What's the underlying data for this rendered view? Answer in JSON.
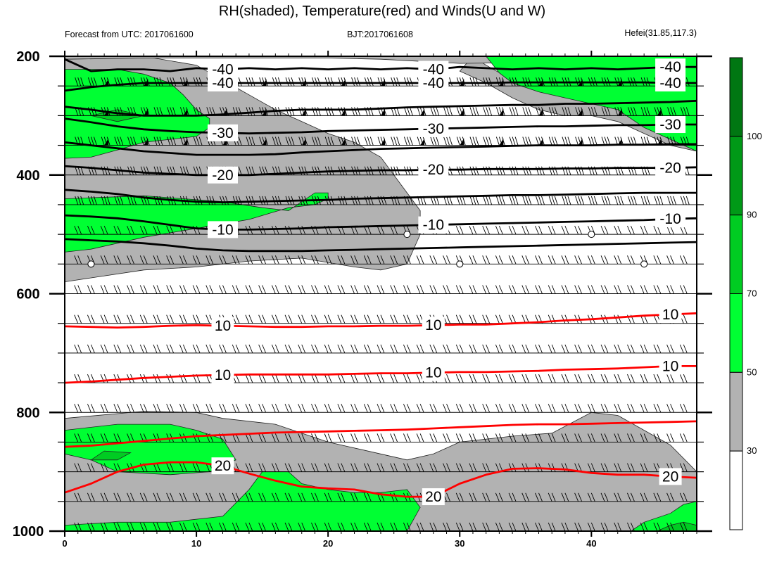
{
  "header": {
    "title": "RH(shaded), Temperature(red) and Winds(U and W)",
    "left": "Forecast from UTC: 2017061600",
    "center": "BJT:2017061608",
    "right": "Hefei(31.85,117.3)"
  },
  "colors": {
    "rh_30_50": "#b2b2b2",
    "rh_50_70": "#00ff33",
    "rh_70_90": "#00cc22",
    "rh_90_100": "#009917",
    "rh_100": "#007712",
    "temp_warm": "#ff0000",
    "temp_cold": "#000000",
    "wind": "#000000"
  },
  "chart_data": {
    "type": "contour",
    "x": {
      "min": 0,
      "max": 48,
      "ticks": [
        0,
        10,
        20,
        30,
        40
      ]
    },
    "y": {
      "label": "",
      "scale": "linear",
      "reversed": true,
      "min": 200,
      "max": 1000,
      "ticks": [
        200,
        400,
        600,
        800,
        1000
      ]
    },
    "pressure_levels": [
      200,
      250,
      300,
      350,
      400,
      450,
      500,
      550,
      600,
      650,
      700,
      750,
      800,
      850,
      900,
      950,
      1000
    ],
    "colorbar": {
      "labels": [
        "30",
        "50",
        "70",
        "90",
        "100"
      ],
      "levels": [
        30,
        50,
        70,
        90,
        100
      ]
    },
    "temperature_contours": [
      {
        "value": -40,
        "label": "-40",
        "color": "black",
        "p": [
          205,
          225,
          222,
          222,
          225,
          220,
          222,
          220,
          222,
          220,
          222,
          220,
          222,
          220,
          222,
          218,
          220,
          222,
          220,
          222,
          220,
          222,
          220,
          218,
          218
        ]
      },
      {
        "value": -40,
        "label": "-40",
        "color": "black",
        "p": [
          258,
          252,
          248,
          245,
          245,
          245,
          245,
          245,
          245,
          245,
          245,
          245,
          245,
          245,
          245,
          245,
          245,
          244,
          244,
          244,
          244,
          244,
          244,
          245,
          245
        ]
      },
      {
        "value": -35,
        "label": "",
        "color": "black",
        "p": [
          285,
          290,
          296,
          300,
          300,
          300,
          298,
          295,
          292,
          290,
          290,
          290,
          288,
          286,
          285,
          284,
          283,
          282,
          282,
          280,
          280,
          279,
          278,
          277,
          275
        ]
      },
      {
        "value": -30,
        "label": "-30",
        "color": "black",
        "p": [
          305,
          311,
          318,
          323,
          326,
          328,
          329,
          330,
          329,
          328,
          326,
          325,
          324,
          323,
          322,
          321,
          320,
          319,
          318,
          318,
          317,
          316,
          316,
          315,
          315
        ]
      },
      {
        "value": -25,
        "label": "",
        "color": "black",
        "p": [
          345,
          350,
          355,
          360,
          363,
          366,
          366,
          366,
          365,
          362,
          360,
          358,
          356,
          355,
          354,
          353,
          352,
          351,
          350,
          350,
          350,
          349,
          349,
          348,
          348
        ]
      },
      {
        "value": -20,
        "label": "-20",
        "color": "black",
        "p": [
          385,
          388,
          392,
          396,
          398,
          400,
          400,
          400,
          398,
          396,
          394,
          393,
          392,
          392,
          391,
          391,
          390,
          390,
          390,
          389,
          389,
          388,
          388,
          388,
          387
        ]
      },
      {
        "value": -15,
        "label": "",
        "color": "black",
        "p": [
          425,
          428,
          432,
          438,
          442,
          445,
          446,
          445,
          444,
          443,
          442,
          440,
          439,
          438,
          437,
          436,
          435,
          434,
          434,
          433,
          432,
          431,
          430,
          430,
          430
        ]
      },
      {
        "value": -10,
        "label": "-10",
        "color": "black",
        "p": [
          468,
          470,
          473,
          478,
          484,
          490,
          492,
          492,
          491,
          490,
          488,
          487,
          486,
          485,
          484,
          483,
          482,
          481,
          480,
          479,
          478,
          477,
          476,
          474,
          473
        ]
      },
      {
        "value": -5,
        "label": "",
        "color": "black",
        "p": [
          508,
          510,
          512,
          515,
          519,
          524,
          527,
          528,
          528,
          528,
          527,
          526,
          525,
          524,
          523,
          522,
          521,
          520,
          519,
          518,
          517,
          516,
          515,
          514,
          513
        ]
      },
      {
        "value": 10,
        "label": "10",
        "color": "red",
        "p": [
          655,
          656,
          657,
          656,
          654,
          653,
          654,
          655,
          656,
          656,
          655,
          655,
          654,
          654,
          653,
          652,
          652,
          650,
          648,
          645,
          643,
          640,
          637,
          635,
          633
        ]
      },
      {
        "value": 10,
        "label": "10",
        "color": "red",
        "p": [
          750,
          748,
          745,
          742,
          740,
          738,
          737,
          736,
          736,
          736,
          736,
          735,
          734,
          734,
          733,
          732,
          732,
          731,
          730,
          728,
          727,
          726,
          724,
          722,
          722
        ]
      },
      {
        "value": 15,
        "label": "",
        "color": "red",
        "p": [
          858,
          856,
          852,
          848,
          844,
          840,
          838,
          836,
          834,
          833,
          832,
          831,
          830,
          829,
          827,
          825,
          823,
          821,
          820,
          820,
          819,
          818,
          817,
          816,
          815
        ]
      },
      {
        "value": 20,
        "label": "20",
        "color": "red",
        "p": [
          935,
          920,
          900,
          888,
          884,
          884,
          890,
          903,
          915,
          925,
          928,
          930,
          938,
          942,
          942,
          920,
          905,
          895,
          894,
          896,
          902,
          905,
          905,
          908,
          910
        ]
      }
    ],
    "wind_barbs": "constant westerly shafts at every level; full barbs and pennants aloft (200-400 hPa), calm circles near 500-550 hPa"
  }
}
